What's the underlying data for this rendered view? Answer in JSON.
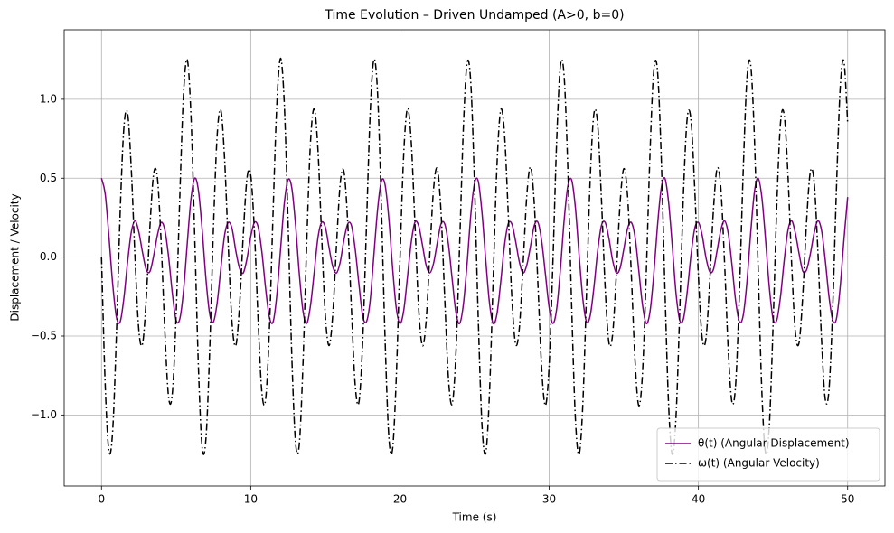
{
  "chart_data": {
    "type": "line",
    "title": "Time Evolution – Driven Undamped (A>0, b=0)",
    "x_label": "Time (s)",
    "y_label": "Displacement / Velocity",
    "x": [
      0,
      0.25,
      0.5,
      0.75,
      1,
      1.25,
      1.5,
      1.75,
      2,
      2.25,
      2.5,
      2.75,
      3,
      3.25,
      3.5,
      3.75,
      4,
      4.25,
      4.5,
      4.75,
      5,
      5.25,
      5.5,
      5.75,
      6,
      6.25,
      6.5,
      6.75,
      7,
      7.25,
      7.5,
      7.75,
      8,
      8.25,
      8.5,
      8.75,
      9,
      9.25,
      9.5,
      9.75,
      10,
      10.25,
      10.5,
      10.75,
      11,
      11.25,
      11.5,
      11.75,
      12,
      12.25,
      12.5,
      12.75,
      13,
      13.25,
      13.5,
      13.75,
      14,
      14.25,
      14.5,
      14.75,
      15,
      15.25,
      15.5,
      15.75,
      16,
      16.25,
      16.5,
      16.75,
      17,
      17.25,
      17.5,
      17.75,
      18,
      18.25,
      18.5,
      18.75,
      19,
      19.25,
      19.5,
      19.75,
      20,
      20.25,
      20.5,
      20.75,
      21,
      21.25,
      21.5,
      21.75,
      22,
      22.25,
      22.5,
      22.75,
      23,
      23.25,
      23.5,
      23.75,
      24,
      24.25,
      24.5,
      24.75,
      25,
      25.25,
      25.5,
      25.75,
      26,
      26.25,
      26.5,
      26.75,
      27,
      27.25,
      27.5,
      27.75,
      28,
      28.25,
      28.5,
      28.75,
      29,
      29.25,
      29.5,
      29.75,
      30,
      30.25,
      30.5,
      30.75,
      31,
      31.25,
      31.5,
      31.75,
      32,
      32.25,
      32.5,
      32.75,
      33,
      33.25,
      33.5,
      33.75,
      34,
      34.25,
      34.5,
      34.75,
      35,
      35.25,
      35.5,
      35.75,
      36,
      36.25,
      36.5,
      36.75,
      37,
      37.25,
      37.5,
      37.75,
      38,
      38.25,
      38.5,
      38.75,
      39,
      39.25,
      39.5,
      39.75,
      40,
      40.25,
      40.5,
      40.75,
      41,
      41.25,
      41.5,
      41.75,
      42,
      42.25,
      42.5,
      42.75,
      43,
      43.25,
      43.5,
      43.75,
      44,
      44.25,
      44.5,
      44.75,
      45,
      45.25,
      45.5,
      45.75,
      46,
      46.25,
      46.5,
      46.75,
      47,
      47.25,
      47.5,
      47.75,
      48,
      48.25,
      48.5,
      48.75,
      49,
      49.25,
      49.5,
      49.75,
      50
    ],
    "series": [
      {
        "name": "θ(t) (Angular Displacement)",
        "color": "#800080",
        "linestyle": "solid",
        "values": [
          0.5,
          0.4,
          0.13,
          -0.17,
          -0.38,
          -0.41,
          -0.26,
          -0.03,
          0.16,
          0.23,
          0.16,
          0.03,
          -0.08,
          -0.09,
          0.01,
          0.14,
          0.22,
          0.17,
          0,
          -0.23,
          -0.4,
          -0.39,
          -0.21,
          0.09,
          0.37,
          0.5,
          0.42,
          0.17,
          -0.14,
          -0.36,
          -0.41,
          -0.29,
          -0.07,
          0.14,
          0.22,
          0.18,
          0.04,
          -0.07,
          -0.1,
          -0.01,
          0.13,
          0.22,
          0.19,
          0.03,
          -0.2,
          -0.38,
          -0.41,
          -0.24,
          0.05,
          0.34,
          0.49,
          0.44,
          0.21,
          -0.1,
          -0.34,
          -0.42,
          -0.31,
          -0.1,
          0.12,
          0.22,
          0.19,
          0.06,
          -0.06,
          -0.1,
          -0.03,
          0.11,
          0.21,
          0.2,
          0.05,
          -0.17,
          -0.37,
          -0.41,
          -0.28,
          0.01,
          0.3,
          0.48,
          0.46,
          0.25,
          -0.06,
          -0.32,
          -0.42,
          -0.34,
          -0.13,
          0.09,
          0.22,
          0.2,
          0.08,
          -0.05,
          -0.1,
          -0.04,
          0.09,
          0.21,
          0.21,
          0.08,
          -0.14,
          -0.35,
          -0.42,
          -0.3,
          -0.04,
          0.27,
          0.47,
          0.48,
          0.28,
          -0.02,
          -0.29,
          -0.42,
          -0.36,
          -0.16,
          0.07,
          0.21,
          0.21,
          0.1,
          -0.03,
          -0.1,
          -0.05,
          0.07,
          0.2,
          0.22,
          0.1,
          -0.11,
          -0.32,
          -0.42,
          -0.33,
          -0.08,
          0.23,
          0.45,
          0.49,
          0.32,
          0.02,
          -0.26,
          -0.41,
          -0.37,
          -0.19,
          0.04,
          0.2,
          0.22,
          0.12,
          -0.02,
          -0.1,
          -0.07,
          0.05,
          0.18,
          0.22,
          0.13,
          -0.08,
          -0.3,
          -0.42,
          -0.35,
          -0.12,
          0.19,
          0.43,
          0.5,
          0.35,
          0.07,
          -0.23,
          -0.4,
          -0.39,
          -0.22,
          0.01,
          0.18,
          0.22,
          0.14,
          0,
          -0.09,
          -0.08,
          0.04,
          0.17,
          0.23,
          0.15,
          -0.05,
          -0.28,
          -0.41,
          -0.37,
          -0.16,
          0.15,
          0.41,
          0.5,
          0.38,
          0.11,
          -0.19,
          -0.39,
          -0.4,
          -0.25,
          -0.02,
          0.17,
          0.23,
          0.15,
          0.02,
          -0.09,
          -0.08,
          0.02,
          0.15,
          0.23,
          0.17,
          -0.02,
          -0.25,
          -0.4,
          -0.39,
          -0.19,
          0.11,
          0.38
        ]
      },
      {
        "name": "ω(t) (Angular Velocity)",
        "color": "#000000",
        "linestyle": "dashdot",
        "values": [
          0,
          -0.81,
          -1.23,
          -1.1,
          -0.49,
          0.28,
          0.82,
          0.91,
          0.55,
          -0.01,
          -0.46,
          -0.55,
          -0.26,
          0.2,
          0.53,
          0.5,
          0.09,
          -0.48,
          -0.89,
          -0.86,
          -0.37,
          0.39,
          1.04,
          1.25,
          0.89,
          0.12,
          -0.71,
          -1.21,
          -1.15,
          -0.59,
          0.18,
          0.77,
          0.93,
          0.62,
          0.06,
          -0.42,
          -0.56,
          -0.31,
          0.14,
          0.5,
          0.52,
          0.16,
          -0.41,
          -0.86,
          -0.9,
          -0.46,
          0.29,
          0.97,
          1.26,
          0.97,
          0.23,
          -0.62,
          -1.17,
          -1.19,
          -0.68,
          0.08,
          0.72,
          0.94,
          0.69,
          0.14,
          -0.37,
          -0.56,
          -0.36,
          0.08,
          0.47,
          0.54,
          0.22,
          -0.33,
          -0.81,
          -0.92,
          -0.54,
          0.18,
          0.9,
          1.25,
          1.04,
          0.34,
          -0.51,
          -1.13,
          -1.22,
          -0.77,
          -0.02,
          0.65,
          0.94,
          0.74,
          0.22,
          -0.32,
          -0.56,
          -0.41,
          0.02,
          0.43,
          0.56,
          0.29,
          -0.26,
          -0.77,
          -0.93,
          -0.61,
          0.08,
          0.82,
          1.23,
          1.1,
          0.45,
          -0.4,
          -1.07,
          -1.24,
          -0.86,
          -0.13,
          0.58,
          0.93,
          0.79,
          0.29,
          -0.26,
          -0.55,
          -0.45,
          -0.05,
          0.39,
          0.57,
          0.34,
          -0.18,
          -0.71,
          -0.94,
          -0.68,
          -0.03,
          0.73,
          1.21,
          1.15,
          0.56,
          -0.29,
          -1.01,
          -1.25,
          -0.94,
          -0.23,
          0.5,
          0.91,
          0.84,
          0.37,
          -0.19,
          -0.54,
          -0.49,
          -0.11,
          0.34,
          0.56,
          0.39,
          -0.1,
          -0.65,
          -0.94,
          -0.74,
          -0.12,
          0.64,
          1.17,
          1.19,
          0.66,
          -0.18,
          -0.93,
          -1.25,
          -1.01,
          -0.34,
          0.41,
          0.88,
          0.87,
          0.44,
          -0.12,
          -0.51,
          -0.52,
          -0.17,
          0.29,
          0.56,
          0.44,
          -0.03,
          -0.59,
          -0.92,
          -0.8,
          -0.22,
          0.54,
          1.13,
          1.22,
          0.76,
          -0.06,
          -0.85,
          -1.24,
          -1.07,
          -0.44,
          0.32,
          0.85,
          0.9,
          0.52,
          -0.05,
          -0.48,
          -0.54,
          -0.23,
          0.23,
          0.54,
          0.48,
          0.05,
          -0.52,
          -0.9,
          -0.84,
          -0.32,
          0.44,
          1.07,
          1.24,
          0.85
        ]
      }
    ],
    "xlim": [
      -2.5,
      52.5
    ],
    "ylim": [
      -1.45,
      1.44
    ],
    "xticks": [
      0,
      10,
      20,
      30,
      40,
      50
    ],
    "yticks": [
      {
        "value": -1,
        "label": "−1.0"
      },
      {
        "value": -0.5,
        "label": "−0.5"
      },
      {
        "value": 0,
        "label": "0.0"
      },
      0.5,
      {
        "value": 1,
        "label": "1.0"
      }
    ],
    "grid": true,
    "legend": "lower right"
  }
}
